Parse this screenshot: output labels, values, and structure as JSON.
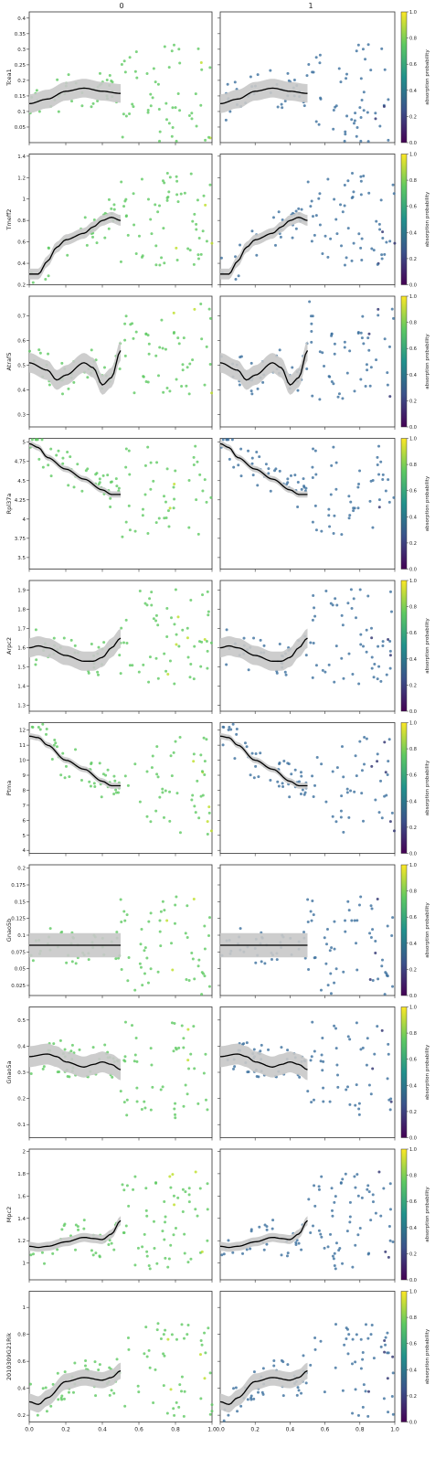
{
  "figure": {
    "column_titles": [
      "0",
      "1"
    ],
    "colorbar_label": "absorption probability",
    "colorbar_ticks": [
      "0.0",
      "0.2",
      "0.4",
      "0.6",
      "0.8",
      "1.0"
    ],
    "x_ticks": [
      "0.0",
      "0.2",
      "0.4",
      "0.6",
      "0.8",
      "1.0"
    ],
    "colormap": [
      "#440154",
      "#3b528b",
      "#21918c",
      "#5ec962",
      "#fde725"
    ],
    "point_color_col0": "#5ec962",
    "point_color_col1": "#3b6f9e",
    "trend_color": "#000000",
    "band_color": "#c8c8c8"
  },
  "chart_data": [
    {
      "type": "scatter",
      "gene": "Tcea1",
      "ylim": [
        0.0,
        0.42
      ],
      "yticks": [
        0.05,
        0.1,
        0.15,
        0.2,
        0.25,
        0.3,
        0.35,
        0.4
      ],
      "trend": {
        "x": [
          0.0,
          0.1,
          0.2,
          0.3,
          0.4,
          0.5
        ],
        "y": [
          0.125,
          0.14,
          0.165,
          0.175,
          0.165,
          0.158
        ],
        "band": 0.03
      }
    },
    {
      "type": "scatter",
      "gene": "Tmeff2",
      "ylim": [
        0.2,
        1.42
      ],
      "yticks": [
        0.2,
        0.4,
        0.6,
        0.8,
        1.0,
        1.2,
        1.4
      ],
      "trend": {
        "x": [
          0.0,
          0.05,
          0.1,
          0.15,
          0.2,
          0.3,
          0.35,
          0.4,
          0.45,
          0.5
        ],
        "y": [
          0.3,
          0.3,
          0.42,
          0.55,
          0.62,
          0.68,
          0.74,
          0.8,
          0.83,
          0.8
        ],
        "band": 0.05
      }
    },
    {
      "type": "scatter",
      "gene": "Atraf5",
      "ylim": [
        0.25,
        0.78
      ],
      "yticks": [
        0.3,
        0.4,
        0.5,
        0.6,
        0.7
      ],
      "trend": {
        "x": [
          0.0,
          0.1,
          0.15,
          0.2,
          0.3,
          0.35,
          0.4,
          0.45,
          0.5
        ],
        "y": [
          0.51,
          0.48,
          0.44,
          0.46,
          0.51,
          0.49,
          0.42,
          0.45,
          0.56
        ],
        "band": 0.04
      }
    },
    {
      "type": "scatter",
      "gene": "Rpl37a",
      "ylim": [
        3.35,
        5.05
      ],
      "yticks": [
        3.5,
        3.75,
        4.0,
        4.25,
        4.5,
        4.75,
        5.0
      ],
      "trend": {
        "x": [
          0.0,
          0.05,
          0.1,
          0.2,
          0.3,
          0.4,
          0.45,
          0.5
        ],
        "y": [
          4.98,
          4.93,
          4.8,
          4.65,
          4.52,
          4.38,
          4.32,
          4.32
        ],
        "band": 0.04
      }
    },
    {
      "type": "scatter",
      "gene": "Arpc2",
      "ylim": [
        1.27,
        1.95
      ],
      "yticks": [
        1.3,
        1.4,
        1.5,
        1.6,
        1.7,
        1.8,
        1.9
      ],
      "trend": {
        "x": [
          0.0,
          0.05,
          0.1,
          0.2,
          0.3,
          0.35,
          0.4,
          0.45,
          0.5
        ],
        "y": [
          1.6,
          1.61,
          1.6,
          1.56,
          1.53,
          1.53,
          1.55,
          1.6,
          1.65
        ],
        "band": 0.05
      }
    },
    {
      "type": "scatter",
      "gene": "Ptma",
      "ylim": [
        3.8,
        12.5
      ],
      "yticks": [
        4,
        5,
        6,
        7,
        8,
        9,
        10,
        11,
        12
      ],
      "trend": {
        "x": [
          0.0,
          0.05,
          0.1,
          0.2,
          0.3,
          0.4,
          0.45,
          0.5
        ],
        "y": [
          11.6,
          11.5,
          11.0,
          10.0,
          9.4,
          8.6,
          8.3,
          8.3
        ],
        "band": 0.2
      }
    },
    {
      "type": "scatter",
      "gene": "Gnao5b",
      "ylim": [
        0.01,
        0.205
      ],
      "yticks": [
        0.025,
        0.05,
        0.075,
        0.1,
        0.125,
        0.15,
        0.175,
        0.2
      ],
      "trend": {
        "x": [
          0.0,
          0.25,
          0.5
        ],
        "y": [
          0.085,
          0.085,
          0.085
        ],
        "band": 0.018
      }
    },
    {
      "type": "scatter",
      "gene": "Gnao5a",
      "ylim": [
        0.05,
        0.55
      ],
      "yticks": [
        0.1,
        0.2,
        0.3,
        0.4,
        0.5
      ],
      "trend": {
        "x": [
          0.0,
          0.1,
          0.15,
          0.2,
          0.3,
          0.35,
          0.4,
          0.45,
          0.5
        ],
        "y": [
          0.36,
          0.37,
          0.36,
          0.34,
          0.32,
          0.33,
          0.34,
          0.33,
          0.31
        ],
        "band": 0.04
      }
    },
    {
      "type": "scatter",
      "gene": "Mpc2",
      "ylim": [
        0.85,
        2.02
      ],
      "yticks": [
        1.0,
        1.2,
        1.4,
        1.6,
        1.8,
        2.0
      ],
      "trend": {
        "x": [
          0.0,
          0.05,
          0.1,
          0.2,
          0.3,
          0.35,
          0.4,
          0.45,
          0.5
        ],
        "y": [
          1.15,
          1.14,
          1.15,
          1.19,
          1.23,
          1.22,
          1.21,
          1.26,
          1.38
        ],
        "band": 0.04
      }
    },
    {
      "type": "scatter",
      "gene": "2010309G21Rik",
      "ylim": [
        0.15,
        1.12
      ],
      "yticks": [
        0.2,
        0.4,
        0.6,
        0.8,
        1.0
      ],
      "trend": {
        "x": [
          0.0,
          0.05,
          0.1,
          0.2,
          0.3,
          0.4,
          0.45,
          0.5
        ],
        "y": [
          0.3,
          0.28,
          0.33,
          0.45,
          0.48,
          0.46,
          0.48,
          0.53
        ],
        "band": 0.06
      }
    }
  ]
}
